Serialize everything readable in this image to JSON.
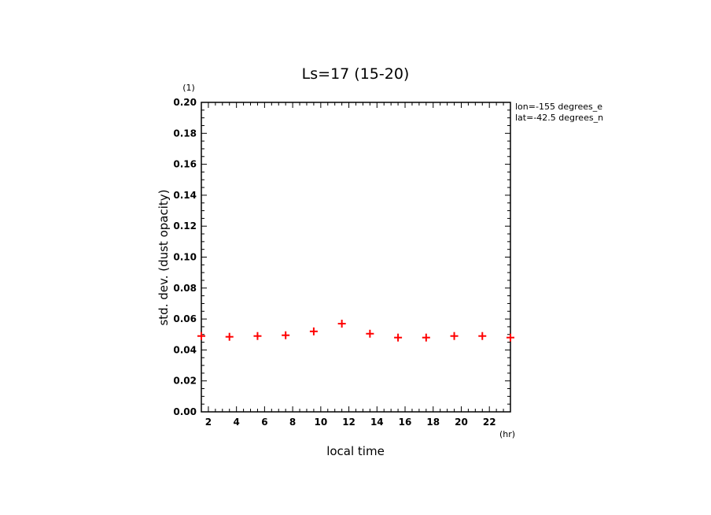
{
  "chart_data": {
    "type": "scatter",
    "title": "Ls=17 (15-20)",
    "xlabel": "local time",
    "xunit": "(hr)",
    "ylabel": "std. dev. (dust opacity)",
    "yunit": "(1)",
    "annotations": [
      "lon=-155 degrees_e",
      "lat=-42.5 degrees_n"
    ],
    "xlim": [
      1.5,
      23.5
    ],
    "ylim": [
      0,
      0.2
    ],
    "xticks": [
      2,
      4,
      6,
      8,
      10,
      12,
      14,
      16,
      18,
      20,
      22
    ],
    "yticks": [
      0.0,
      0.02,
      0.04,
      0.06,
      0.08,
      0.1,
      0.12,
      0.14,
      0.16,
      0.18,
      0.2
    ],
    "ytick_labels": [
      "0.00",
      "0.02",
      "0.04",
      "0.06",
      "0.08",
      "0.10",
      "0.12",
      "0.14",
      "0.16",
      "0.18",
      "0.20"
    ],
    "grid": false,
    "marker_color": "#ff0000",
    "series": [
      {
        "x": [
          1.5,
          3.5,
          5.5,
          7.5,
          9.5,
          11.5,
          13.5,
          15.5,
          17.5,
          19.5,
          21.5,
          23.5
        ],
        "y": [
          0.049,
          0.0485,
          0.049,
          0.0495,
          0.052,
          0.057,
          0.0505,
          0.048,
          0.048,
          0.049,
          0.049,
          0.048
        ]
      }
    ]
  }
}
